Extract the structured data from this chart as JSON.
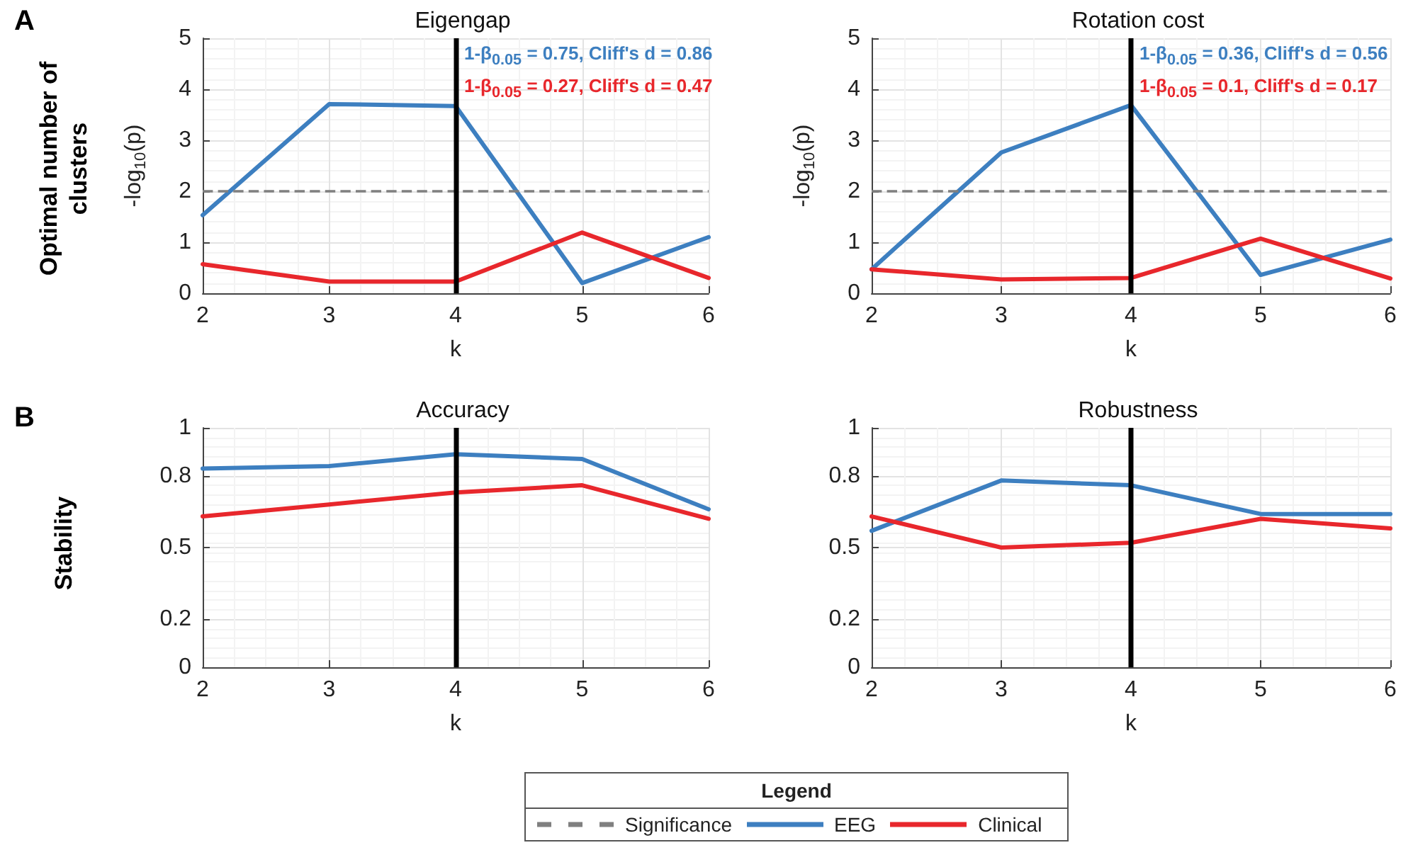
{
  "chart_data": [
    {
      "type": "line",
      "title": "Eigengap",
      "xlabel": "k",
      "ylabel": "-log$_{10}$(p)",
      "x": [
        2,
        3,
        4,
        5,
        6
      ],
      "xlim": [
        2,
        6
      ],
      "xticks": [
        2,
        3,
        4,
        5,
        6
      ],
      "ylim": [
        0,
        5
      ],
      "yticks": [
        0,
        1,
        2,
        3,
        4,
        5
      ],
      "grid": true,
      "marker": "none",
      "line_style": "solid",
      "legend": "bottom",
      "legend_title": "Legend",
      "series": [
        {
          "name": "EEG",
          "color": "#3d7fc0",
          "values": [
            1.53,
            3.71,
            3.67,
            0.2,
            1.1
          ]
        },
        {
          "name": "Clinical",
          "color": "#e8272c",
          "values": [
            0.57,
            0.23,
            0.23,
            1.19,
            0.3
          ]
        }
      ],
      "ref_lines": [
        {
          "axis": "y",
          "value": 2,
          "label": "Significance",
          "color": "#808080",
          "line_style": "dashed"
        },
        {
          "axis": "x",
          "value": 4,
          "color": "#000000",
          "line_style": "solid"
        }
      ],
      "annotations": [
        "A",
        "Optimal number of clusters",
        "1-β$_{0.05}$ = 0.75, Cliff's d = 0.86",
        "1-β$_{0.05}$ = 0.27, Cliff's d = 0.47"
      ]
    },
    {
      "type": "line",
      "title": "Rotation cost",
      "xlabel": "k",
      "ylabel": "-log$_{10}$(p)",
      "x": [
        2,
        3,
        4,
        5,
        6
      ],
      "xlim": [
        2,
        6
      ],
      "xticks": [
        2,
        3,
        4,
        5,
        6
      ],
      "ylim": [
        0,
        5
      ],
      "yticks": [
        0,
        1,
        2,
        3,
        4,
        5
      ],
      "grid": true,
      "marker": "none",
      "line_style": "solid",
      "series": [
        {
          "color": "#3d7fc0",
          "values": [
            0.47,
            2.76,
            3.69,
            0.36,
            1.05
          ]
        },
        {
          "color": "#e8272c",
          "values": [
            0.47,
            0.27,
            0.3,
            1.07,
            0.29
          ]
        }
      ],
      "ref_lines": [
        {
          "axis": "y",
          "value": 2,
          "color": "#808080",
          "line_style": "dashed"
        },
        {
          "axis": "x",
          "value": 4,
          "color": "#000000",
          "line_style": "solid"
        }
      ],
      "annotations": [
        "1-β$_{0.05}$ = 0.36, Cliff's d = 0.56",
        "1-β$_{0.05}$ = 0.1, Cliff's d = 0.17"
      ]
    },
    {
      "type": "line",
      "title": "Accuracy",
      "xlabel": "k",
      "x": [
        2,
        3,
        4,
        5,
        6
      ],
      "xlim": [
        2,
        6
      ],
      "xticks": [
        2,
        3,
        4,
        5,
        6
      ],
      "ylim": [
        0,
        1
      ],
      "yticks": [
        0,
        0.2,
        0.5,
        0.8,
        1
      ],
      "grid": true,
      "marker": "none",
      "line_style": "solid",
      "series": [
        {
          "color": "#3d7fc0",
          "values": [
            0.83,
            0.84,
            0.89,
            0.87,
            0.66
          ]
        },
        {
          "color": "#e8272c",
          "values": [
            0.63,
            0.68,
            0.73,
            0.76,
            0.62
          ]
        }
      ],
      "ref_lines": [
        {
          "axis": "x",
          "value": 4,
          "color": "#000000",
          "line_style": "solid"
        }
      ],
      "annotations": [
        "B",
        "Stability"
      ]
    },
    {
      "type": "line",
      "title": "Robustness",
      "xlabel": "k",
      "x": [
        2,
        3,
        4,
        5,
        6
      ],
      "xlim": [
        2,
        6
      ],
      "xticks": [
        2,
        3,
        4,
        5,
        6
      ],
      "ylim": [
        0,
        1
      ],
      "yticks": [
        0,
        0.2,
        0.5,
        0.8,
        1
      ],
      "grid": true,
      "marker": "none",
      "line_style": "solid",
      "series": [
        {
          "color": "#3d7fc0",
          "values": [
            0.57,
            0.78,
            0.76,
            0.64,
            0.64
          ]
        },
        {
          "color": "#e8272c",
          "values": [
            0.63,
            0.5,
            0.52,
            0.62,
            0.58
          ]
        }
      ],
      "ref_lines": [
        {
          "axis": "x",
          "value": 4,
          "color": "#000000",
          "line_style": "solid"
        }
      ]
    }
  ]
}
